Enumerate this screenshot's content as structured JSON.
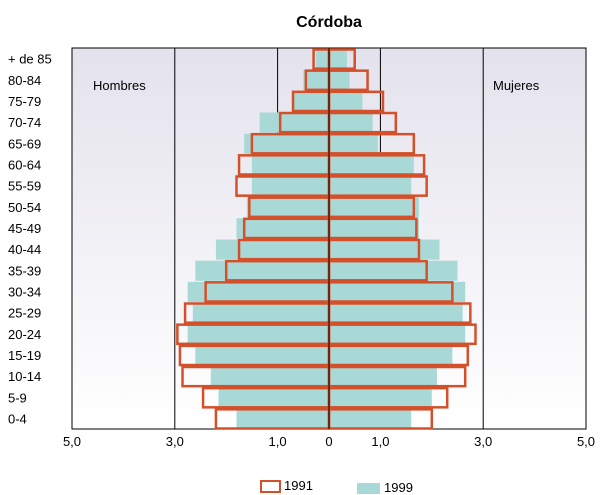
{
  "chart_data": {
    "type": "bar",
    "title": "Córdoba",
    "left_label": "Hombres",
    "right_label": "Mujeres",
    "categories": [
      "+ de 85",
      "80-84",
      "75-79",
      "70-74",
      "65-69",
      "60-64",
      "55-59",
      "50-54",
      "45-49",
      "40-44",
      "35-39",
      "30-34",
      "25-29",
      "20-24",
      "15-19",
      "10-14",
      "5-9",
      "0-4"
    ],
    "x_ticks": [
      "5,0",
      "3,0",
      "1,0",
      "0",
      "1,0",
      "3,0",
      "5,0"
    ],
    "x_tick_values": [
      -5,
      -3,
      -1,
      0,
      1,
      3,
      5
    ],
    "xlim": [
      -5,
      5
    ],
    "series": [
      {
        "name": "1991",
        "men": [
          0.3,
          0.45,
          0.7,
          0.95,
          1.5,
          1.75,
          1.8,
          1.55,
          1.65,
          1.75,
          2.0,
          2.4,
          2.8,
          2.95,
          2.9,
          2.85,
          2.45,
          2.2
        ],
        "women": [
          0.5,
          0.75,
          1.05,
          1.3,
          1.65,
          1.85,
          1.9,
          1.65,
          1.7,
          1.75,
          1.9,
          2.4,
          2.75,
          2.85,
          2.7,
          2.65,
          2.3,
          2.0
        ]
      },
      {
        "name": "1999",
        "men": [
          0.25,
          0.5,
          0.7,
          1.35,
          1.65,
          1.5,
          1.5,
          1.6,
          1.8,
          2.2,
          2.6,
          2.75,
          2.65,
          2.75,
          2.6,
          2.3,
          2.15,
          1.8
        ],
        "women": [
          0.35,
          0.4,
          0.65,
          0.85,
          0.95,
          1.65,
          1.6,
          1.75,
          1.75,
          2.15,
          2.5,
          2.65,
          2.6,
          2.65,
          2.4,
          2.1,
          2.0,
          1.6
        ]
      }
    ],
    "legend": [
      "1991",
      "1999"
    ],
    "colors": {
      "1991": "#d4502a",
      "1999": "#a9d9d6",
      "background_top": "#e4e2ec",
      "background_bottom": "#ffffff",
      "grid": "#000000"
    },
    "grid": true,
    "legend_position": "bottom-center"
  }
}
